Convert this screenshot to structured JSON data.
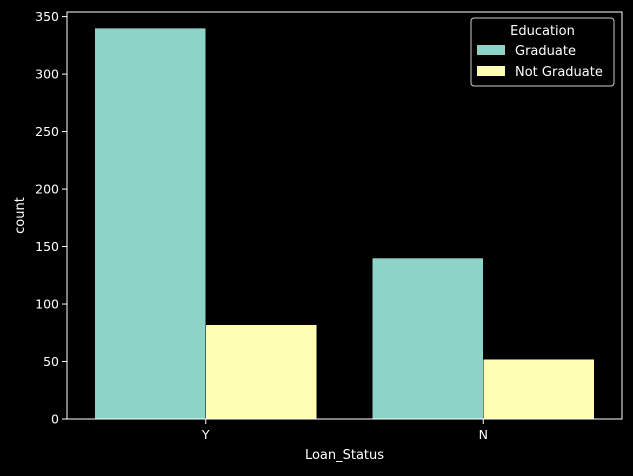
{
  "chart_data": {
    "type": "bar",
    "xlabel": "Loan_Status",
    "ylabel": "count",
    "categories": [
      "Y",
      "N"
    ],
    "series": [
      {
        "name": "Graduate",
        "values": [
          340,
          140
        ]
      },
      {
        "name": "Not Graduate",
        "values": [
          82,
          52
        ]
      }
    ],
    "ylim": [
      0,
      354
    ],
    "yticks": [
      0,
      50,
      100,
      150,
      200,
      250,
      300,
      350
    ],
    "grid": false,
    "legend": {
      "title": "Education",
      "placement": "top-right"
    },
    "colors": {
      "Graduate": "#8dd3c7",
      "Not Graduate": "#feffb3",
      "background": "#000000",
      "axes": "#ffffff",
      "text": "#ffffff"
    }
  }
}
